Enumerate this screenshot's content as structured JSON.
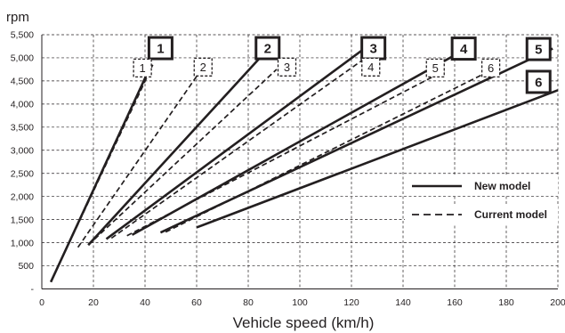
{
  "chart_data": {
    "type": "line",
    "ylabel": "rpm",
    "xlabel": "Vehicle speed (km/h)",
    "xlim": [
      0,
      200
    ],
    "ylim": [
      0,
      5500
    ],
    "x_ticks": [
      0,
      20,
      40,
      60,
      80,
      100,
      120,
      140,
      160,
      180,
      200
    ],
    "y_ticks": [
      {
        "value": 0,
        "label": "-"
      },
      {
        "value": 500,
        "label": "500"
      },
      {
        "value": 1000,
        "label": "1,000"
      },
      {
        "value": 1500,
        "label": "1,500"
      },
      {
        "value": 2000,
        "label": "2,000"
      },
      {
        "value": 2500,
        "label": "2,500"
      },
      {
        "value": 3000,
        "label": "3,000"
      },
      {
        "value": 3500,
        "label": "3,500"
      },
      {
        "value": 4000,
        "label": "4,000"
      },
      {
        "value": 4500,
        "label": "4,500"
      },
      {
        "value": 5000,
        "label": "5,000"
      },
      {
        "value": 5500,
        "label": "5,500"
      }
    ],
    "grid": true,
    "legend": {
      "position": "right",
      "entries": [
        {
          "label": "New model",
          "style": "solid"
        },
        {
          "label": "Current model",
          "style": "dashed"
        }
      ]
    },
    "series": [
      {
        "group": "New model",
        "gear": "1",
        "style": "solid",
        "points": [
          [
            3.5,
            150
          ],
          [
            41,
            4680
          ]
        ]
      },
      {
        "group": "New model",
        "gear": "2",
        "style": "solid",
        "points": [
          [
            18,
            950
          ],
          [
            87,
            5150
          ]
        ]
      },
      {
        "group": "New model",
        "gear": "3",
        "style": "solid",
        "points": [
          [
            25,
            1080
          ],
          [
            125,
            5200
          ]
        ]
      },
      {
        "group": "New model",
        "gear": "4",
        "style": "solid",
        "points": [
          [
            35,
            1170
          ],
          [
            163,
            5150
          ]
        ]
      },
      {
        "group": "New model",
        "gear": "5",
        "style": "solid",
        "points": [
          [
            46,
            1220
          ],
          [
            198,
            5200
          ]
        ]
      },
      {
        "group": "New model",
        "gear": "6",
        "style": "solid",
        "points": [
          [
            60,
            1330
          ],
          [
            200,
            4300
          ]
        ]
      },
      {
        "group": "Current model",
        "gear": "1",
        "style": "dashed",
        "points": [
          [
            3.5,
            150
          ],
          [
            43,
            4850
          ]
        ]
      },
      {
        "group": "Current model",
        "gear": "2",
        "style": "dashed",
        "points": [
          [
            14,
            900
          ],
          [
            60,
            4600
          ]
        ]
      },
      {
        "group": "Current model",
        "gear": "3",
        "style": "dashed",
        "points": [
          [
            18,
            950
          ],
          [
            91,
            4750
          ]
        ]
      },
      {
        "group": "Current model",
        "gear": "4",
        "style": "dashed",
        "points": [
          [
            27,
            1100
          ],
          [
            125,
            4980
          ]
        ]
      },
      {
        "group": "Current model",
        "gear": "5",
        "style": "dashed",
        "points": [
          [
            33,
            1150
          ],
          [
            156,
            4720
          ]
        ]
      },
      {
        "group": "Current model",
        "gear": "6",
        "style": "dashed",
        "points": [
          [
            48,
            1230
          ],
          [
            173,
            4700
          ]
        ]
      }
    ],
    "gear_labels": [
      {
        "text": "1",
        "style": "solid",
        "x": 46,
        "y": 5210
      },
      {
        "text": "2",
        "style": "solid",
        "x": 87.5,
        "y": 5210
      },
      {
        "text": "3",
        "style": "solid",
        "x": 128.5,
        "y": 5210
      },
      {
        "text": "4",
        "style": "solid",
        "x": 163.5,
        "y": 5200
      },
      {
        "text": "5",
        "style": "solid",
        "x": 192.5,
        "y": 5190
      },
      {
        "text": "6",
        "style": "solid",
        "x": 192.5,
        "y": 4480
      },
      {
        "text": "1",
        "style": "dashed",
        "x": 39,
        "y": 4780
      },
      {
        "text": "2",
        "style": "dashed",
        "x": 62.5,
        "y": 4800
      },
      {
        "text": "3",
        "style": "dashed",
        "x": 95,
        "y": 4800
      },
      {
        "text": "4",
        "style": "dashed",
        "x": 127.5,
        "y": 4800
      },
      {
        "text": "5",
        "style": "dashed",
        "x": 152.5,
        "y": 4780
      },
      {
        "text": "6",
        "style": "dashed",
        "x": 174,
        "y": 4780
      }
    ]
  }
}
